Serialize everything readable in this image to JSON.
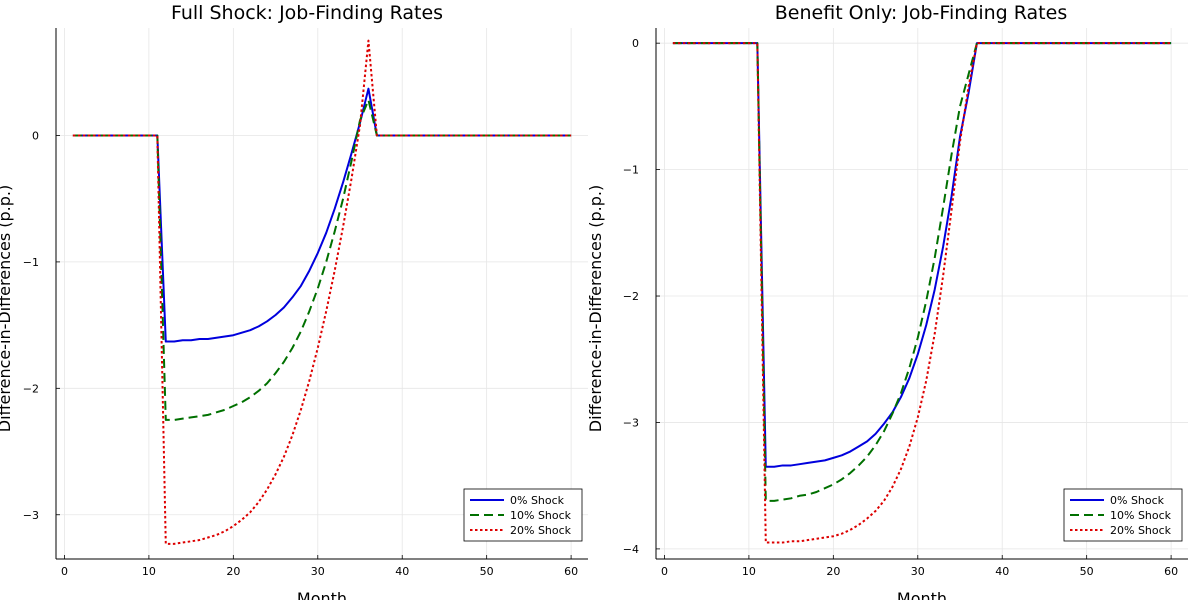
{
  "chart_data": [
    {
      "type": "line",
      "title": "Full Shock: Job-Finding Rates",
      "xlabel": "Month",
      "ylabel": "Difference-in-Differences (p.p.)",
      "xlim": [
        -1,
        62
      ],
      "ylim": [
        -3.35,
        0.85
      ],
      "xticks": [
        0,
        10,
        20,
        30,
        40,
        50,
        60
      ],
      "yticks": [
        -3,
        -2,
        -1,
        0
      ],
      "grid": true,
      "legend_position": "bottom-right",
      "series": [
        {
          "name": "0% Shock",
          "color": "#0000dd",
          "dash": "solid",
          "x": [
            1,
            11,
            12,
            13,
            14,
            15,
            16,
            17,
            18,
            19,
            20,
            21,
            22,
            23,
            24,
            25,
            26,
            27,
            28,
            29,
            30,
            31,
            32,
            33,
            34,
            35,
            36,
            37,
            60
          ],
          "y": [
            0,
            0,
            -1.63,
            -1.63,
            -1.62,
            -1.62,
            -1.61,
            -1.61,
            -1.6,
            -1.59,
            -1.58,
            -1.56,
            -1.54,
            -1.51,
            -1.47,
            -1.42,
            -1.36,
            -1.28,
            -1.19,
            -1.07,
            -0.93,
            -0.77,
            -0.58,
            -0.37,
            -0.14,
            0.1,
            0.37,
            0,
            0
          ]
        },
        {
          "name": "10% Shock",
          "color": "#007000",
          "dash": "dashed",
          "x": [
            1,
            11,
            12,
            13,
            14,
            15,
            16,
            17,
            18,
            19,
            20,
            21,
            22,
            23,
            24,
            25,
            26,
            27,
            28,
            29,
            30,
            31,
            32,
            33,
            34,
            35,
            36,
            37,
            60
          ],
          "y": [
            0,
            0,
            -2.25,
            -2.25,
            -2.24,
            -2.23,
            -2.22,
            -2.21,
            -2.19,
            -2.17,
            -2.14,
            -2.11,
            -2.07,
            -2.02,
            -1.96,
            -1.88,
            -1.79,
            -1.68,
            -1.55,
            -1.39,
            -1.21,
            -1.0,
            -0.76,
            -0.5,
            -0.2,
            0.12,
            0.28,
            0,
            0
          ]
        },
        {
          "name": "20% Shock",
          "color": "#dd0000",
          "dash": "dotted",
          "x": [
            1,
            11,
            12,
            13,
            14,
            15,
            16,
            17,
            18,
            19,
            20,
            21,
            22,
            23,
            24,
            25,
            26,
            27,
            28,
            29,
            30,
            31,
            32,
            33,
            34,
            35,
            36,
            37,
            60
          ],
          "y": [
            0,
            0,
            -3.23,
            -3.23,
            -3.22,
            -3.21,
            -3.2,
            -3.18,
            -3.16,
            -3.13,
            -3.09,
            -3.04,
            -2.98,
            -2.9,
            -2.8,
            -2.68,
            -2.54,
            -2.37,
            -2.17,
            -1.94,
            -1.68,
            -1.39,
            -1.07,
            -0.72,
            -0.34,
            0.08,
            0.75,
            0,
            0
          ]
        }
      ]
    },
    {
      "type": "line",
      "title": "Benefit Only: Job-Finding Rates",
      "xlabel": "Month",
      "ylabel": "Difference-in-Differences (p.p.)",
      "xlim": [
        -1,
        62
      ],
      "ylim": [
        -4.08,
        0.12
      ],
      "xticks": [
        0,
        10,
        20,
        30,
        40,
        50,
        60
      ],
      "yticks": [
        -4,
        -3,
        -2,
        -1,
        0
      ],
      "grid": true,
      "legend_position": "bottom-right",
      "series": [
        {
          "name": "0% Shock",
          "color": "#0000dd",
          "dash": "solid",
          "x": [
            1,
            11,
            12,
            13,
            14,
            15,
            16,
            17,
            18,
            19,
            20,
            21,
            22,
            23,
            24,
            25,
            26,
            27,
            28,
            29,
            30,
            31,
            32,
            33,
            34,
            35,
            36,
            37,
            60
          ],
          "y": [
            0,
            0,
            -3.35,
            -3.35,
            -3.34,
            -3.34,
            -3.33,
            -3.32,
            -3.31,
            -3.3,
            -3.28,
            -3.26,
            -3.23,
            -3.19,
            -3.15,
            -3.09,
            -3.01,
            -2.92,
            -2.8,
            -2.65,
            -2.46,
            -2.23,
            -1.95,
            -1.61,
            -1.21,
            -0.74,
            -0.4,
            0,
            0
          ]
        },
        {
          "name": "10% Shock",
          "color": "#007000",
          "dash": "dashed",
          "x": [
            1,
            11,
            12,
            13,
            14,
            15,
            16,
            17,
            18,
            19,
            20,
            21,
            22,
            23,
            24,
            25,
            26,
            27,
            28,
            29,
            30,
            31,
            32,
            33,
            34,
            35,
            36,
            37,
            60
          ],
          "y": [
            0,
            0,
            -3.62,
            -3.62,
            -3.61,
            -3.6,
            -3.58,
            -3.57,
            -3.55,
            -3.52,
            -3.49,
            -3.45,
            -3.4,
            -3.34,
            -3.27,
            -3.18,
            -3.07,
            -2.93,
            -2.77,
            -2.57,
            -2.33,
            -2.04,
            -1.7,
            -1.3,
            -0.88,
            -0.5,
            -0.25,
            0,
            0
          ]
        },
        {
          "name": "20% Shock",
          "color": "#dd0000",
          "dash": "dotted",
          "x": [
            1,
            11,
            12,
            13,
            14,
            15,
            16,
            17,
            18,
            19,
            20,
            21,
            22,
            23,
            24,
            25,
            26,
            27,
            28,
            29,
            30,
            31,
            32,
            33,
            34,
            35,
            36,
            37,
            60
          ],
          "y": [
            0,
            0,
            -3.95,
            -3.95,
            -3.95,
            -3.94,
            -3.94,
            -3.93,
            -3.92,
            -3.91,
            -3.9,
            -3.88,
            -3.85,
            -3.81,
            -3.76,
            -3.7,
            -3.62,
            -3.51,
            -3.37,
            -3.19,
            -2.96,
            -2.67,
            -2.3,
            -1.84,
            -1.32,
            -0.78,
            -0.35,
            0,
            0
          ]
        }
      ]
    }
  ]
}
